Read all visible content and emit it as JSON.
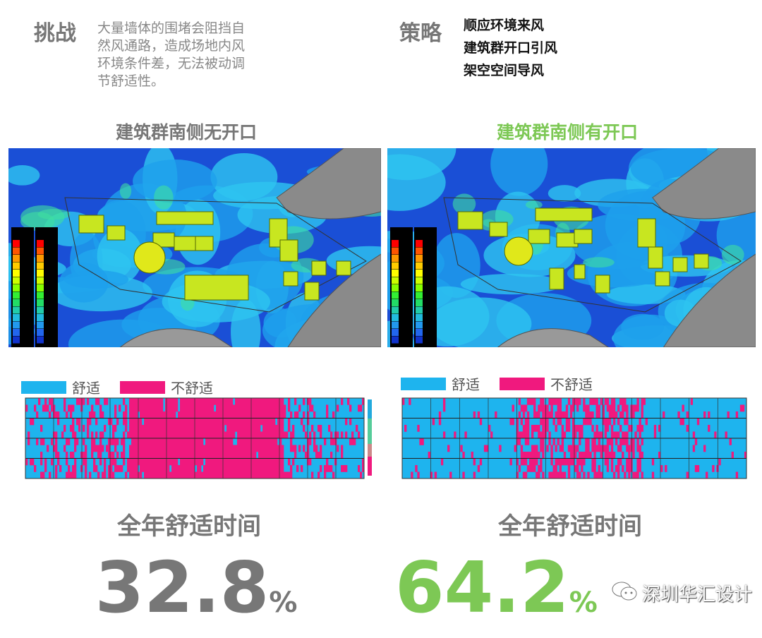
{
  "challenge": {
    "label": "挑战",
    "text_lines": [
      "大量墙体的围堵会阻挡自",
      "然风通路，造成场地内风",
      "环境条件差，无法被动调",
      "节舒适性。"
    ]
  },
  "strategy": {
    "label": "策略",
    "items": [
      "顺应环境来风",
      "建筑群开口引风",
      "架空空间导风"
    ]
  },
  "panels": [
    {
      "title": "建筑群南侧无开口",
      "title_color": "#777777",
      "comfort_label": "全年舒适时间",
      "comfort_value": "32.8",
      "unit": "%",
      "value_color": "#777777"
    },
    {
      "title": "建筑群南侧有开口",
      "title_color": "#7dc855",
      "comfort_label": "全年舒适时间",
      "comfort_value": "64.2",
      "unit": "%",
      "value_color": "#7dc855"
    }
  ],
  "legend": {
    "comfortable": "舒适",
    "uncomfortable": "不舒适",
    "comfortable_color": "#1eb4ee",
    "uncomfortable_color": "#f0197e"
  },
  "watermark": {
    "text": "深圳华汇设计",
    "icon": "wechat-icon"
  }
}
